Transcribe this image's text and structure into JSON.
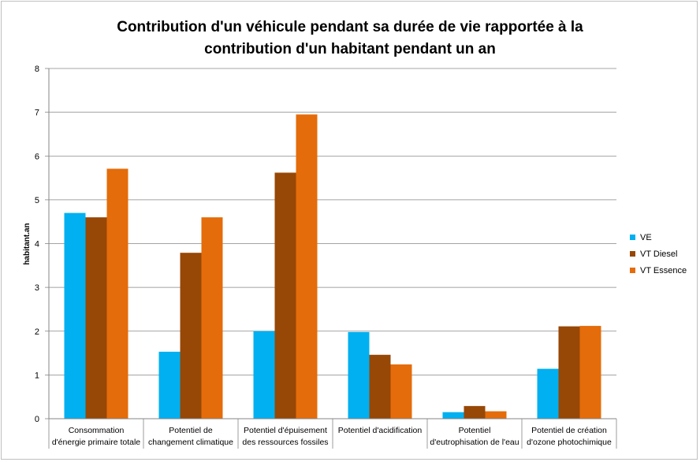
{
  "chart_data": {
    "type": "bar",
    "title_lines": [
      "Contribution d'un véhicule pendant sa durée de vie rapportée à la",
      "contribution d'un habitant pendant un an"
    ],
    "ylabel": "habitant.an",
    "xlabel": "",
    "ylim": [
      0,
      8
    ],
    "yticks": [
      0,
      1,
      2,
      3,
      4,
      5,
      6,
      7,
      8
    ],
    "grid": true,
    "legend_position": "right",
    "categories": [
      [
        "Consommation",
        "d'énergie primaire totale"
      ],
      [
        "Potentiel de",
        "changement climatique"
      ],
      [
        "Potentiel d'épuisement",
        "des ressources fossiles"
      ],
      [
        "Potentiel d'acidification"
      ],
      [
        "Potentiel",
        "d'eutrophisation de l'eau"
      ],
      [
        "Potentiel de création",
        "d'ozone photochimique"
      ]
    ],
    "series": [
      {
        "name": "VE",
        "color": "#00b0f0",
        "values": [
          4.7,
          1.53,
          2.0,
          1.98,
          0.15,
          1.14
        ]
      },
      {
        "name": "VT Diesel",
        "color": "#974706",
        "values": [
          4.6,
          3.79,
          5.62,
          1.46,
          0.29,
          2.11
        ]
      },
      {
        "name": "VT Essence",
        "color": "#e46c0a",
        "values": [
          5.71,
          4.6,
          6.95,
          1.24,
          0.17,
          2.12
        ]
      }
    ]
  }
}
